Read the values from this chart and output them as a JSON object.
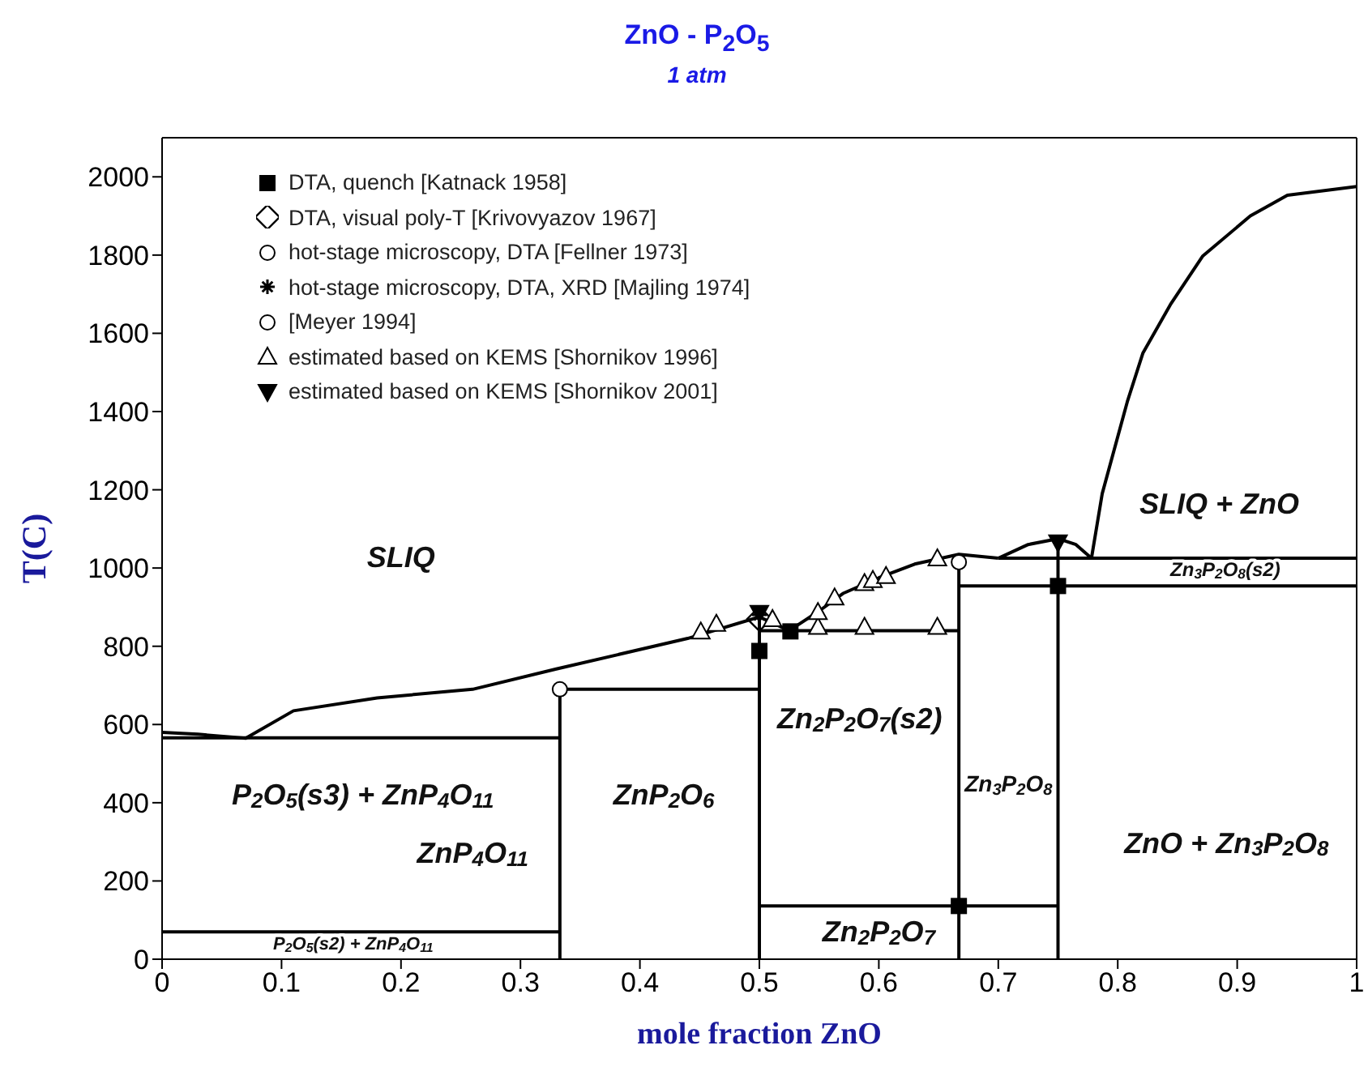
{
  "chart_data": {
    "type": "line",
    "title": "ZnO - P$_{2}$O$_{5}$",
    "subtitle": "1 atm",
    "xlabel": "mole fraction ZnO",
    "ylabel": "T(C)",
    "xlim": [
      0,
      1
    ],
    "xticks": [
      0,
      0.1,
      0.2,
      0.3,
      0.4,
      0.5,
      0.6,
      0.7,
      0.8,
      0.9,
      1
    ],
    "ylim": [
      0,
      2100
    ],
    "yticks": [
      0,
      200,
      400,
      600,
      800,
      1000,
      1200,
      1400,
      1600,
      1800,
      2000
    ],
    "grid": false,
    "legend": "top left",
    "marker": "none",
    "line_style": "solid",
    "series": [
      {
        "color": "#000000",
        "x": [
          0,
          0.03,
          0.07,
          0.11,
          0.18,
          0.26,
          0.33,
          0.44,
          0.5,
          0.525
        ],
        "values": [
          580,
          575,
          565,
          635,
          668,
          690,
          742,
          820,
          875,
          840
        ]
      },
      {
        "color": "#000000",
        "x": [
          0.525,
          0.55,
          0.57,
          0.6,
          0.63,
          0.667,
          0.7
        ],
        "values": [
          840,
          890,
          935,
          975,
          1010,
          1035,
          1025
        ]
      },
      {
        "color": "#000000",
        "x": [
          0.7,
          0.725,
          0.75,
          0.765,
          0.778
        ],
        "values": [
          1025,
          1060,
          1075,
          1060,
          1025
        ]
      },
      {
        "color": "#000000",
        "x": [
          0.778,
          0.787,
          0.808,
          0.821,
          0.844,
          0.871,
          0.911,
          0.942,
          1
        ],
        "values": [
          1025,
          1190,
          1425,
          1549,
          1673,
          1797,
          1900,
          1953,
          1975
        ]
      },
      {
        "color": "#000000",
        "x": [
          0,
          0.333
        ],
        "values": [
          566,
          566
        ]
      },
      {
        "color": "#000000",
        "x": [
          0,
          0.333
        ],
        "values": [
          70,
          70
        ]
      },
      {
        "color": "#000000",
        "x": [
          0.333,
          0.5
        ],
        "values": [
          690,
          690
        ]
      },
      {
        "color": "#000000",
        "x": [
          0.5,
          0.667
        ],
        "values": [
          840,
          840
        ]
      },
      {
        "color": "#000000",
        "x": [
          0.5,
          0.75
        ],
        "values": [
          136,
          136
        ]
      },
      {
        "color": "#000000",
        "x": [
          0.667,
          1
        ],
        "values": [
          954,
          954
        ]
      },
      {
        "color": "#000000",
        "x": [
          0.7,
          1
        ],
        "values": [
          1025,
          1025
        ]
      },
      {
        "color": "#000000",
        "x": [
          0.333,
          0.333
        ],
        "values": [
          0,
          690
        ]
      },
      {
        "color": "#000000",
        "x": [
          0.5,
          0.5
        ],
        "values": [
          0,
          875
        ]
      },
      {
        "color": "#000000",
        "x": [
          0.667,
          0.667
        ],
        "values": [
          0,
          1035
        ]
      },
      {
        "color": "#000000",
        "x": [
          0.75,
          0.75
        ],
        "values": [
          0,
          1075
        ]
      },
      {
        "type": "scatter",
        "name": "DTA, quench [Katnack 1958]",
        "color": "#000000",
        "marker": "square",
        "x": [
          0.5,
          0.526,
          0.667,
          0.75
        ],
        "values": [
          788,
          838,
          136,
          954
        ]
      },
      {
        "type": "scatter",
        "name": "DTA, visual poly-T [Krivovyazov 1967]",
        "color": "#000000",
        "marker": "diamond",
        "x": [
          0.5
        ],
        "values": [
          870
        ]
      },
      {
        "type": "scatter",
        "name": "hot-stage microscopy, DTA [Fellner 1973]",
        "color": "#000000",
        "marker": "circle",
        "x": [
          0.667
        ],
        "values": [
          1015
        ]
      },
      {
        "type": "scatter",
        "name": "hot-stage microscopy, DTA, XRD [Majling 1974]",
        "color": "#000000",
        "marker": "cross",
        "x": [
          0.5
        ],
        "values": [
          880
        ]
      },
      {
        "type": "scatter",
        "name": "[Meyer 1994]",
        "color": "#000000",
        "marker": "circle",
        "x": [
          0.333
        ],
        "values": [
          690
        ]
      },
      {
        "type": "scatter",
        "name": "estimated based on KEMS [Shornikov 1996]",
        "color": "#000000",
        "marker": "triangle",
        "x": [
          0.451,
          0.464,
          0.511,
          0.549,
          0.588,
          0.649,
          0.549,
          0.563,
          0.588,
          0.595,
          0.606,
          0.649
        ],
        "values": [
          838,
          858,
          870,
          850,
          850,
          850,
          888,
          925,
          962,
          970,
          980,
          1025
        ]
      },
      {
        "type": "scatter",
        "name": "estimated based on KEMS [Shornikov 2001]",
        "color": "#000000",
        "marker": "triangle-down",
        "x": [
          0.5,
          0.75
        ],
        "values": [
          885,
          1065
        ]
      }
    ],
    "annotations": [
      "SLIQ",
      "SLIQ + ZnO",
      "Zn$_{3}$P$_{2}$O$_{8}$(s2)",
      "Zn$_{2}$P$_{2}$O$_{7}$(s2)",
      "Zn$_{3}$P$_{2}$O$_{8}$",
      "ZnO + Zn$_{3}$P$_{2}$O$_{8}$",
      "ZnP$_{2}$O$_{6}$",
      "ZnP$_{4}$O$_{11}$",
      "P$_{2}$O$_{5}$(s3) + ZnP$_{4}$O$_{11}$",
      "P$_{2}$O$_{5}$(s2) + ZnP$_{4}$O$_{11}$",
      "Zn$_{2}$P$_{2}$O$_{7}$"
    ]
  }
}
